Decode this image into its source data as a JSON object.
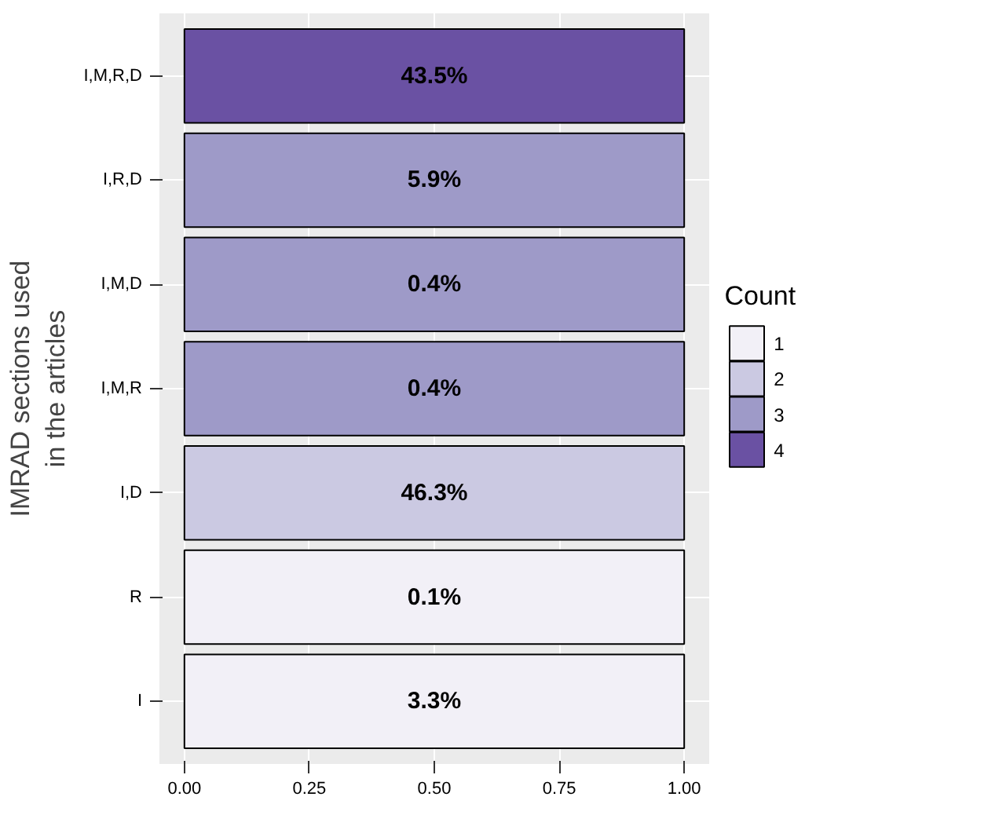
{
  "chart_data": {
    "type": "bar",
    "orientation": "horizontal",
    "ylabel": "IMRAD sections used in the articles",
    "legend_title": "Count",
    "legend": "right",
    "grid": true,
    "categories": [
      "I,M,R,D",
      "I,R,D",
      "I,M,D",
      "I,M,R",
      "I,D",
      "R",
      "I"
    ],
    "series": [
      {
        "name": "1",
        "color": "#f2f0f7",
        "values": [
          null,
          null,
          null,
          null,
          null,
          1.0,
          1.0
        ]
      },
      {
        "name": "2",
        "color": "#cbc9e2",
        "values": [
          null,
          null,
          null,
          null,
          1.0,
          null,
          null
        ]
      },
      {
        "name": "3",
        "color": "#9e9ac8",
        "values": [
          null,
          1.0,
          1.0,
          1.0,
          null,
          null,
          null
        ]
      },
      {
        "name": "4",
        "color": "#6a51a3",
        "values": [
          1.0,
          null,
          null,
          null,
          null,
          null,
          null
        ]
      }
    ],
    "value_labels": [
      "43.5%",
      "5.9%",
      "0.4%",
      "0.4%",
      "46.3%",
      "0.1%",
      "3.3%"
    ],
    "xlim": [
      -0.05,
      1.05
    ],
    "xticks": [
      {
        "value": 0,
        "label": "0.00"
      },
      {
        "value": 0.25,
        "label": "0.25"
      },
      {
        "value": 0.5,
        "label": "0.50"
      },
      {
        "value": 0.75,
        "label": "0.75"
      },
      {
        "value": 1,
        "label": "1.00"
      }
    ]
  }
}
